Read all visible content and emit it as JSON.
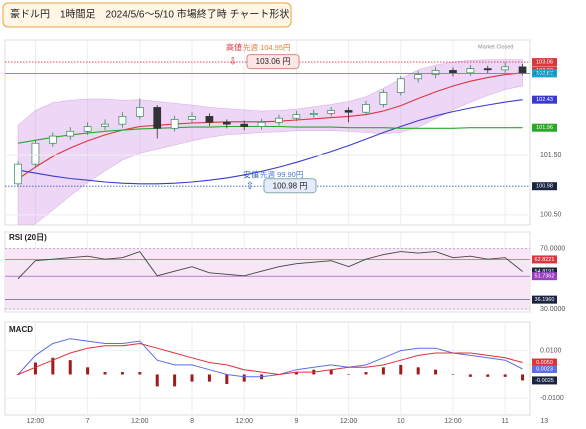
{
  "page_title": "豪ドル円　1時間足　2024/5/6～5/10 市場終了時 チャート形状",
  "chart_data": [
    {
      "type": "candlestick",
      "symbol": "AUD/JPY",
      "market_status": "Market Closed",
      "x": [
        8,
        12,
        16,
        20,
        24,
        28,
        32,
        36,
        40,
        44,
        48,
        52,
        56,
        60,
        64,
        68,
        72,
        76,
        80,
        84,
        88,
        92,
        96,
        100,
        104,
        108,
        112,
        116,
        120,
        124
      ],
      "xlim": [
        5,
        131
      ],
      "xticks": [
        {
          "value": 12,
          "label": "12:00"
        },
        {
          "value": 24,
          "label": "7"
        },
        {
          "value": 36,
          "label": "12:00"
        },
        {
          "value": 48,
          "label": "8"
        },
        {
          "value": 60,
          "label": "12:00"
        },
        {
          "value": 72,
          "label": "9"
        },
        {
          "value": 84,
          "label": "12:00"
        },
        {
          "value": 96,
          "label": "10"
        },
        {
          "value": 108,
          "label": "12:00"
        },
        {
          "value": 120,
          "label": "11"
        },
        {
          "value": 129,
          "label": "13"
        }
      ],
      "open": [
        101.02,
        101.35,
        101.7,
        101.82,
        101.9,
        101.98,
        102.02,
        102.15,
        102.3,
        101.95,
        102.1,
        102.15,
        102.05,
        102.02,
        101.98,
        102.05,
        102.12,
        102.18,
        102.2,
        102.25,
        102.22,
        102.35,
        102.55,
        102.78,
        102.85,
        102.92,
        102.88,
        102.95,
        102.93,
        102.98
      ],
      "high": [
        101.4,
        101.76,
        101.88,
        101.97,
        102.05,
        102.1,
        102.22,
        102.45,
        102.34,
        102.16,
        102.22,
        102.2,
        102.1,
        102.08,
        102.11,
        102.18,
        102.24,
        102.26,
        102.31,
        102.3,
        102.41,
        102.6,
        102.83,
        102.91,
        102.98,
        102.97,
        103.01,
        103.0,
        103.06,
        103.03
      ],
      "low": [
        100.98,
        101.3,
        101.64,
        101.76,
        101.84,
        101.92,
        101.96,
        102.1,
        101.78,
        101.9,
        102.04,
        101.99,
        101.95,
        101.92,
        101.93,
        102.0,
        102.07,
        102.13,
        102.15,
        102.05,
        102.17,
        102.3,
        102.5,
        102.72,
        102.79,
        102.82,
        102.83,
        102.87,
        102.88,
        102.84
      ],
      "close": [
        101.35,
        101.7,
        101.82,
        101.9,
        101.98,
        102.02,
        102.15,
        102.3,
        101.95,
        102.1,
        102.15,
        102.05,
        102.02,
        101.98,
        102.05,
        102.12,
        102.18,
        102.2,
        102.25,
        102.22,
        102.35,
        102.55,
        102.78,
        102.85,
        102.92,
        102.88,
        102.95,
        102.93,
        102.98,
        102.87
      ],
      "up_color": "#2e8b57",
      "down_color": "#333333",
      "band": {
        "color": "#c77be0",
        "upper": [
          102.0,
          102.25,
          102.38,
          102.42,
          102.44,
          102.44,
          102.42,
          102.43,
          102.4,
          102.37,
          102.34,
          102.3,
          102.28,
          102.26,
          102.24,
          102.25,
          102.27,
          102.31,
          102.35,
          102.4,
          102.48,
          102.62,
          102.78,
          102.93,
          103.01,
          103.06,
          103.09,
          103.1,
          103.1,
          103.1
        ],
        "lower": [
          100.2,
          100.35,
          100.58,
          100.82,
          101.04,
          101.24,
          101.42,
          101.53,
          101.6,
          101.67,
          101.74,
          101.8,
          101.84,
          101.86,
          101.88,
          101.89,
          101.91,
          101.91,
          101.91,
          101.9,
          101.88,
          101.86,
          101.88,
          101.97,
          102.11,
          102.26,
          102.39,
          102.5,
          102.6,
          102.66
        ]
      },
      "series": [
        {
          "color": "#d9363e",
          "values": [
            101.1,
            101.3,
            101.48,
            101.62,
            101.74,
            101.84,
            101.92,
            101.98,
            102.0,
            102.02,
            102.04,
            102.05,
            102.06,
            102.06,
            102.06,
            102.07,
            102.09,
            102.11,
            102.13,
            102.15,
            102.18,
            102.24,
            102.33,
            102.45,
            102.56,
            102.66,
            102.74,
            102.8,
            102.85,
            102.88
          ]
        },
        {
          "color": "#3a3ad0",
          "values": [
            101.25,
            101.2,
            101.15,
            101.11,
            101.08,
            101.05,
            101.03,
            101.02,
            101.02,
            101.03,
            101.05,
            101.08,
            101.12,
            101.17,
            101.23,
            101.3,
            101.38,
            101.47,
            101.56,
            101.66,
            101.77,
            101.88,
            101.98,
            102.08,
            102.16,
            102.23,
            102.29,
            102.34,
            102.39,
            102.43
          ]
        },
        {
          "color": "#2aa82a",
          "values": [
            101.7,
            101.75,
            101.8,
            101.84,
            101.87,
            101.9,
            101.92,
            101.94,
            101.95,
            101.96,
            101.97,
            101.97,
            101.98,
            101.98,
            101.98,
            101.98,
            101.97,
            101.97,
            101.97,
            101.96,
            101.96,
            101.96,
            101.95,
            101.95,
            101.95,
            101.95,
            101.96,
            101.96,
            101.96,
            101.96
          ]
        }
      ],
      "ylim": [
        100.33,
        103.43
      ],
      "yticks": [
        {
          "value": 101.5,
          "label": "101.50"
        },
        {
          "value": 100.5,
          "label": "100.50"
        }
      ],
      "price_labels": [
        {
          "value": 103.06,
          "label": "103.06",
          "color": "#d9363e"
        },
        {
          "value": 102.92,
          "label": "102.92",
          "color": "#d9363e"
        },
        {
          "value": 102.87,
          "label": "102.87",
          "color": "#1aa7c9",
          "line": true
        },
        {
          "value": 102.43,
          "label": "102.43",
          "color": "#3a3ad0"
        },
        {
          "value": 101.96,
          "label": "101.96",
          "color": "#2aa82a"
        },
        {
          "value": 100.98,
          "label": "100.98",
          "color": "#1a2340"
        }
      ],
      "annotations": [
        {
          "label": "高値",
          "note": "先週 104.95円",
          "box": "103.06 円",
          "value": 103.06,
          "color": "#d9363e"
        },
        {
          "label": "安値",
          "note": "先週 99.90円",
          "box": "100.98 円",
          "value": 100.98,
          "color": "#2b5fb0"
        }
      ]
    },
    {
      "type": "line",
      "title": "RSI (20日)",
      "color": "#444444",
      "values": [
        50,
        62,
        63,
        64,
        65,
        63,
        64,
        68,
        52,
        55,
        58,
        54,
        53,
        52,
        55,
        58,
        60,
        61,
        62,
        58,
        63,
        66,
        68,
        67,
        68,
        64,
        65,
        63,
        64,
        54.8
      ],
      "ylim": [
        28,
        81
      ],
      "yticks": [
        {
          "value": 70,
          "label": "70.0000"
        },
        {
          "value": 30,
          "label": "30.0000"
        }
      ],
      "level_labels": [
        {
          "value": 62.8221,
          "label": "62.8221",
          "color": "#d9363e"
        },
        {
          "value": 54.8191,
          "label": "54.8191",
          "color": "#1a2340"
        },
        {
          "value": 51.7362,
          "label": "51.7362",
          "color": "#9b3fc0"
        },
        {
          "value": 36.196,
          "label": "36.1960",
          "color": "#1a2340"
        }
      ]
    },
    {
      "type": "macd",
      "title": "MACD",
      "macd": {
        "color": "#5b6ee8",
        "values": [
          0,
          0.008,
          0.013,
          0.015,
          0.014,
          0.013,
          0.013,
          0.014,
          0.006,
          0.004,
          0.004,
          0.002,
          0,
          -0.001,
          -0.001,
          0,
          0.002,
          0.003,
          0.004,
          0.003,
          0.004,
          0.007,
          0.01,
          0.011,
          0.011,
          0.009,
          0.008,
          0.007,
          0.006,
          0.0023
        ]
      },
      "signal": {
        "color": "#e0303a",
        "values": [
          0,
          0.003,
          0.006,
          0.009,
          0.011,
          0.012,
          0.012,
          0.013,
          0.011,
          0.009,
          0.007,
          0.005,
          0.004,
          0.002,
          0.001,
          0,
          0.001,
          0.001,
          0.002,
          0.003,
          0.003,
          0.004,
          0.006,
          0.008,
          0.009,
          0.009,
          0.009,
          0.008,
          0.007,
          0.005
        ]
      },
      "histogram": {
        "color": "#9c1b1b",
        "values": [
          0,
          0.005,
          0.007,
          0.006,
          0.003,
          0.001,
          0.001,
          0.001,
          -0.005,
          -0.005,
          -0.003,
          -0.003,
          -0.004,
          -0.003,
          -0.002,
          0,
          0.001,
          0.002,
          0.002,
          0,
          0.001,
          0.003,
          0.004,
          0.003,
          0.002,
          0,
          -0.001,
          -0.001,
          -0.001,
          -0.0025
        ]
      },
      "ylim": [
        -0.017,
        0.022
      ],
      "yticks": [
        {
          "value": 0.01,
          "label": "0.0100"
        },
        {
          "value": -0.01,
          "label": "-0.0100"
        }
      ],
      "level_labels": [
        {
          "value": 0.005,
          "label": "0.0050",
          "color": "#e0303a"
        },
        {
          "value": 0.0023,
          "label": "0.0023",
          "color": "#5b6ee8"
        },
        {
          "value": -0.0025,
          "label": "-0.0025",
          "color": "#1a2340"
        }
      ]
    }
  ]
}
